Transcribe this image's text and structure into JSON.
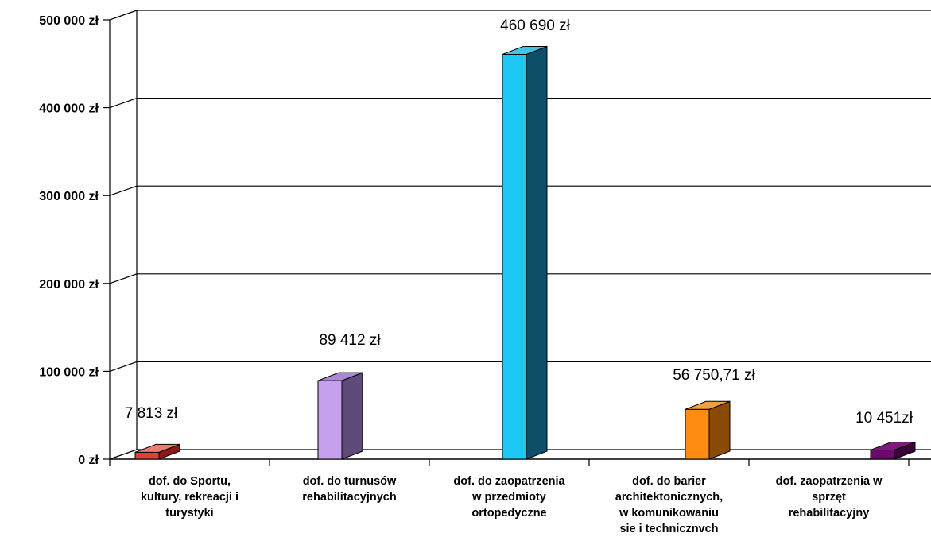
{
  "chart_data": {
    "type": "bar",
    "title": "",
    "xlabel": "",
    "ylabel": "",
    "ylim": [
      0,
      500000
    ],
    "yticks": [
      0,
      100000,
      200000,
      300000,
      400000,
      500000
    ],
    "ytick_labels": [
      "0 zł",
      "100 000 zł",
      "200 000 zł",
      "300 000 zł",
      "400 000 zł",
      "500 000 zł"
    ],
    "grid": true,
    "legend": "none",
    "categories": [
      [
        "dof. do Sportu,",
        "kultury, rekreacji i",
        "turystyki"
      ],
      [
        "dof. do turnusów",
        "rehabilitacyjnych"
      ],
      [
        "dof. do zaopatrzenia",
        "w przedmioty",
        "ortopedyczne"
      ],
      [
        "dof. do barier",
        "architektonicznych,",
        "w komunikowaniu",
        "sie i technicznvch"
      ],
      [
        "dof. zaopatrzenia w",
        "sprzęt",
        "rehabilitacyjny"
      ]
    ],
    "values": [
      7813,
      89412,
      460690,
      56750.71,
      10451
    ],
    "data_labels": [
      "7 813 zł",
      "89 412 zł",
      "460 690 zł",
      "56 750,71 zł",
      "10 451zł"
    ],
    "colors": [
      {
        "front": "#e0403a",
        "side": "#8c1a16",
        "top": "#f07a70"
      },
      {
        "front": "#c6a0ec",
        "side": "#5e4b7a",
        "top": "#a88ad0"
      },
      {
        "front": "#1ec8f4",
        "side": "#0d4f68",
        "top": "#43c4e6"
      },
      {
        "front": "#ff8c10",
        "side": "#8a4a08",
        "top": "#f4a040"
      },
      {
        "front": "#6a0a6a",
        "side": "#380438",
        "top": "#7a1a7a"
      }
    ]
  }
}
